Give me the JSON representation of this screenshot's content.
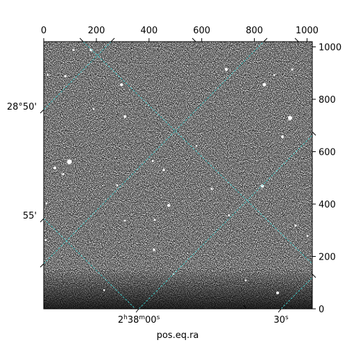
{
  "chart_data": {
    "type": "image",
    "xlabel": "pos.eq.ra",
    "ylabel": "",
    "pixel_xlim": [
      0,
      1020
    ],
    "pixel_ylim": [
      0,
      1020
    ],
    "top_ticks": [
      "0",
      "200",
      "400",
      "600",
      "800",
      "1000"
    ],
    "right_ticks": [
      "0",
      "200",
      "400",
      "600",
      "800",
      "1000"
    ],
    "ra_ticks": [
      {
        "main": "2",
        "h": "h",
        "min": "38",
        "m": "m",
        "sec": "00",
        "s": "s"
      },
      {
        "main": "",
        "h": "",
        "min": "",
        "m": "",
        "sec": "30",
        "s": "s"
      }
    ],
    "dec_ticks": [
      "28°50'",
      "55'"
    ],
    "grid": true,
    "grid_color": "#40d0d0",
    "image_colormap": "gray"
  }
}
